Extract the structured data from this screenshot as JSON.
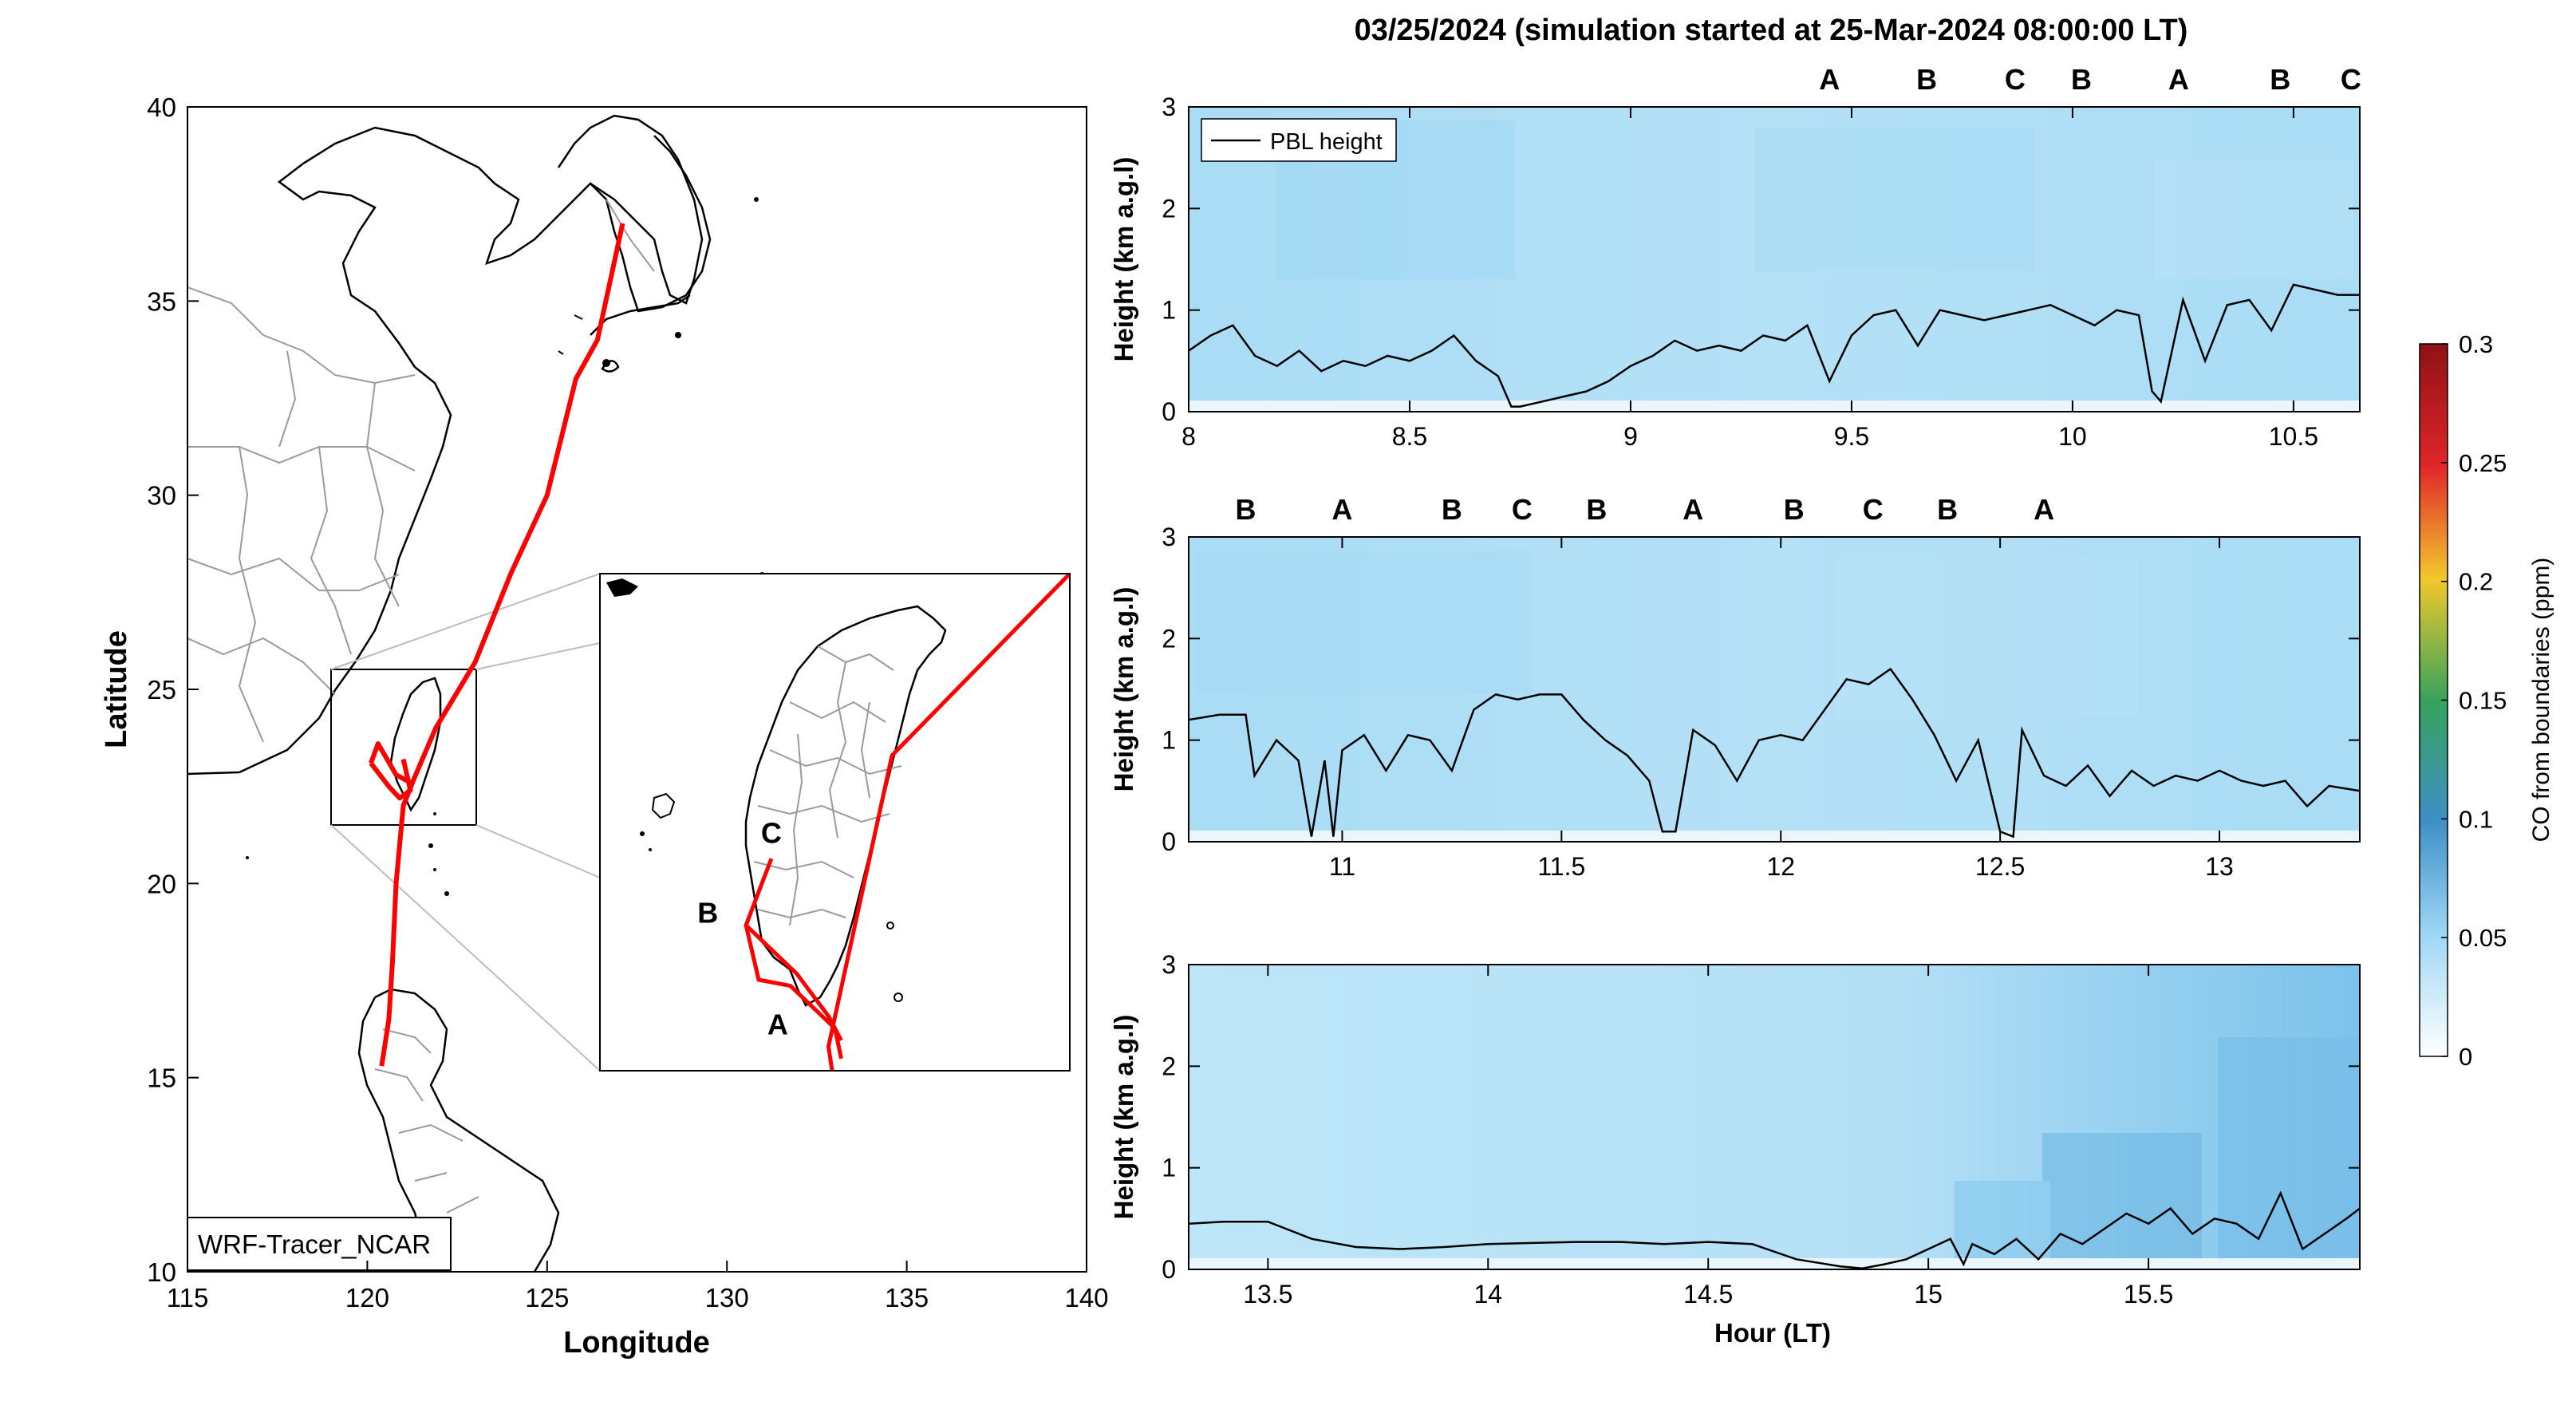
{
  "figure": {
    "title": "03/25/2024 (simulation started at 25-Mar-2024 08:00:00 LT)",
    "x_label": "Hour (LT)",
    "y_label": "Height (km a.g.l)",
    "colorbar_label": "CO from boundaries (ppm)"
  },
  "colors": {
    "A": "#000000",
    "B": "#a2142f",
    "C": "#edb120",
    "track": "#ff0000",
    "field_low": "#bfe5f8",
    "field_high": "#74bfe9"
  },
  "chart_data": [
    {
      "type": "line",
      "name": "map",
      "xlabel": "Longitude",
      "ylabel": "Latitude",
      "xlim": [
        115,
        140
      ],
      "ylim": [
        10,
        40
      ],
      "xticks": [
        "115",
        "120",
        "125",
        "130",
        "135",
        "140"
      ],
      "yticks": [
        "10",
        "15",
        "20",
        "25",
        "30",
        "35",
        "40"
      ],
      "model_label": "WRF-Tracer_NCAR",
      "track": {
        "lon": [
          127.1,
          126.4,
          125.8,
          125.0,
          124.0,
          123.0,
          121.9,
          121.3,
          121.0,
          120.8,
          120.7,
          120.6,
          120.4
        ],
        "lat": [
          37.0,
          34.0,
          33.0,
          30.0,
          28.0,
          25.7,
          24.0,
          22.7,
          22.0,
          20.0,
          18.0,
          16.5,
          15.3
        ]
      },
      "taiwan_tracks": [
        {
          "lon": [
            120.1,
            120.6,
            120.9,
            121.2,
            121.0
          ],
          "lat": [
            23.1,
            22.5,
            22.2,
            22.4,
            23.2
          ]
        },
        {
          "lon": [
            120.1,
            120.3,
            120.8,
            121.2
          ],
          "lat": [
            23.1,
            23.6,
            22.8,
            22.6
          ]
        }
      ],
      "inset": {
        "lon_range": [
          119.0,
          122.7
        ],
        "lat_range": [
          21.5,
          25.6
        ],
        "tracks": [
          {
            "lon": [
              120.35,
              120.15,
              120.25,
              120.5,
              120.85,
              120.9
            ],
            "lat": [
              23.25,
              22.7,
              22.25,
              22.2,
              21.85,
              21.6
            ]
          },
          {
            "lon": [
              120.15,
              120.55,
              120.8,
              120.9
            ],
            "lat": [
              22.7,
              22.3,
              21.95,
              21.75
            ]
          },
          {
            "lon": [
              122.7,
              121.3,
              120.8,
              120.9
            ],
            "lat": [
              25.6,
              24.1,
              21.7,
              21.0
            ]
          }
        ],
        "labels": [
          {
            "text": "C",
            "lon": 120.35,
            "lat": 23.38,
            "group": "C"
          },
          {
            "text": "B",
            "lon": 119.85,
            "lat": 22.72,
            "group": "B"
          },
          {
            "text": "A",
            "lon": 120.4,
            "lat": 21.8,
            "group": "A"
          }
        ]
      }
    },
    {
      "type": "heatmap",
      "name": "panel-1",
      "xlim": [
        8,
        10.65
      ],
      "ylim": [
        0,
        3
      ],
      "xticks": [
        "8",
        "8.5",
        "9",
        "9.5",
        "10",
        "10.5"
      ],
      "yticks": [
        "0",
        "1",
        "2",
        "3"
      ],
      "legend": "PBL height",
      "markers": [
        {
          "text": "A",
          "x": 9.45,
          "group": "A"
        },
        {
          "text": "B",
          "x": 9.67,
          "group": "B"
        },
        {
          "text": "C",
          "x": 9.87,
          "group": "C"
        },
        {
          "text": "B",
          "x": 10.02,
          "group": "B"
        },
        {
          "text": "A",
          "x": 10.24,
          "group": "A"
        },
        {
          "text": "B",
          "x": 10.47,
          "group": "B"
        },
        {
          "text": "C",
          "x": 10.63,
          "group": "C"
        }
      ],
      "pbl": {
        "x": [
          8.0,
          8.05,
          8.1,
          8.15,
          8.2,
          8.25,
          8.3,
          8.35,
          8.4,
          8.45,
          8.5,
          8.55,
          8.6,
          8.65,
          8.7,
          8.73,
          8.75,
          8.8,
          8.85,
          8.9,
          8.95,
          9.0,
          9.05,
          9.1,
          9.15,
          9.2,
          9.25,
          9.3,
          9.35,
          9.4,
          9.45,
          9.5,
          9.55,
          9.6,
          9.65,
          9.7,
          9.75,
          9.8,
          9.85,
          9.9,
          9.95,
          10.0,
          10.05,
          10.1,
          10.15,
          10.18,
          10.2,
          10.25,
          10.3,
          10.35,
          10.4,
          10.45,
          10.5,
          10.55,
          10.6,
          10.65
        ],
        "y": [
          0.6,
          0.75,
          0.85,
          0.55,
          0.45,
          0.6,
          0.4,
          0.5,
          0.45,
          0.55,
          0.5,
          0.6,
          0.75,
          0.5,
          0.35,
          0.05,
          0.05,
          0.1,
          0.15,
          0.2,
          0.3,
          0.45,
          0.55,
          0.7,
          0.6,
          0.65,
          0.6,
          0.75,
          0.7,
          0.85,
          0.3,
          0.75,
          0.95,
          1.0,
          0.65,
          1.0,
          0.95,
          0.9,
          0.95,
          1.0,
          1.05,
          0.95,
          0.85,
          1.0,
          0.95,
          0.2,
          0.1,
          1.1,
          0.5,
          1.05,
          1.1,
          0.8,
          1.25,
          1.2,
          1.15,
          1.15
        ]
      }
    },
    {
      "type": "heatmap",
      "name": "panel-2",
      "xlim": [
        10.65,
        13.32
      ],
      "ylim": [
        0,
        3
      ],
      "xticks": [
        "11",
        "11.5",
        "12",
        "12.5",
        "13"
      ],
      "yticks": [
        "0",
        "1",
        "2",
        "3"
      ],
      "markers": [
        {
          "text": "B",
          "x": 10.78,
          "group": "B"
        },
        {
          "text": "A",
          "x": 11.0,
          "group": "A"
        },
        {
          "text": "B",
          "x": 11.25,
          "group": "B"
        },
        {
          "text": "C",
          "x": 11.41,
          "group": "C"
        },
        {
          "text": "B",
          "x": 11.58,
          "group": "B"
        },
        {
          "text": "A",
          "x": 11.8,
          "group": "A"
        },
        {
          "text": "B",
          "x": 12.03,
          "group": "B"
        },
        {
          "text": "C",
          "x": 12.21,
          "group": "C"
        },
        {
          "text": "B",
          "x": 12.38,
          "group": "B"
        },
        {
          "text": "A",
          "x": 12.6,
          "group": "A"
        }
      ],
      "pbl": {
        "x": [
          10.65,
          10.72,
          10.78,
          10.8,
          10.85,
          10.9,
          10.93,
          10.96,
          10.98,
          11.0,
          11.05,
          11.1,
          11.15,
          11.2,
          11.25,
          11.3,
          11.35,
          11.4,
          11.45,
          11.5,
          11.55,
          11.6,
          11.65,
          11.7,
          11.73,
          11.76,
          11.8,
          11.85,
          11.9,
          11.95,
          12.0,
          12.05,
          12.1,
          12.15,
          12.2,
          12.25,
          12.3,
          12.35,
          12.4,
          12.45,
          12.5,
          12.53,
          12.55,
          12.6,
          12.65,
          12.7,
          12.75,
          12.8,
          12.85,
          12.9,
          12.95,
          13.0,
          13.05,
          13.1,
          13.15,
          13.2,
          13.25,
          13.32
        ],
        "y": [
          1.2,
          1.25,
          1.25,
          0.65,
          1.0,
          0.8,
          0.05,
          0.8,
          0.05,
          0.9,
          1.05,
          0.7,
          1.05,
          1.0,
          0.7,
          1.3,
          1.45,
          1.4,
          1.45,
          1.45,
          1.2,
          1.0,
          0.85,
          0.6,
          0.1,
          0.1,
          1.1,
          0.95,
          0.6,
          1.0,
          1.05,
          1.0,
          1.3,
          1.6,
          1.55,
          1.7,
          1.4,
          1.05,
          0.6,
          1.0,
          0.1,
          0.05,
          1.1,
          0.65,
          0.55,
          0.75,
          0.45,
          0.7,
          0.55,
          0.65,
          0.6,
          0.7,
          0.6,
          0.55,
          0.6,
          0.35,
          0.55,
          0.5
        ]
      }
    },
    {
      "type": "heatmap",
      "name": "panel-3",
      "xlim": [
        13.32,
        15.98
      ],
      "ylim": [
        0,
        3
      ],
      "xticks": [
        "13.5",
        "14",
        "14.5",
        "15",
        "15.5"
      ],
      "yticks": [
        "0",
        "1",
        "2",
        "3"
      ],
      "pbl": {
        "x": [
          13.32,
          13.4,
          13.5,
          13.6,
          13.7,
          13.8,
          13.9,
          14.0,
          14.1,
          14.2,
          14.3,
          14.4,
          14.5,
          14.6,
          14.7,
          14.8,
          14.85,
          14.9,
          14.95,
          15.0,
          15.05,
          15.08,
          15.1,
          15.15,
          15.2,
          15.25,
          15.3,
          15.35,
          15.4,
          15.45,
          15.5,
          15.55,
          15.6,
          15.65,
          15.7,
          15.75,
          15.8,
          15.85,
          15.9,
          15.95,
          15.98
        ],
        "y": [
          0.45,
          0.47,
          0.47,
          0.3,
          0.22,
          0.2,
          0.22,
          0.25,
          0.26,
          0.27,
          0.27,
          0.25,
          0.27,
          0.25,
          0.1,
          0.03,
          0.01,
          0.05,
          0.1,
          0.2,
          0.3,
          0.05,
          0.25,
          0.15,
          0.3,
          0.1,
          0.35,
          0.25,
          0.4,
          0.55,
          0.45,
          0.6,
          0.35,
          0.5,
          0.45,
          0.3,
          0.75,
          0.2,
          0.35,
          0.5,
          0.6
        ]
      }
    },
    {
      "type": "heatmap",
      "name": "colorbar",
      "range": [
        0,
        0.3
      ],
      "ticks": [
        "0",
        "0.05",
        "0.1",
        "0.15",
        "0.2",
        "0.25",
        "0.3"
      ],
      "colors": [
        "#ffffff",
        "#9fd7f5",
        "#3f8fc7",
        "#37a35b",
        "#f2c72c",
        "#e0252a",
        "#8e1214"
      ]
    }
  ]
}
